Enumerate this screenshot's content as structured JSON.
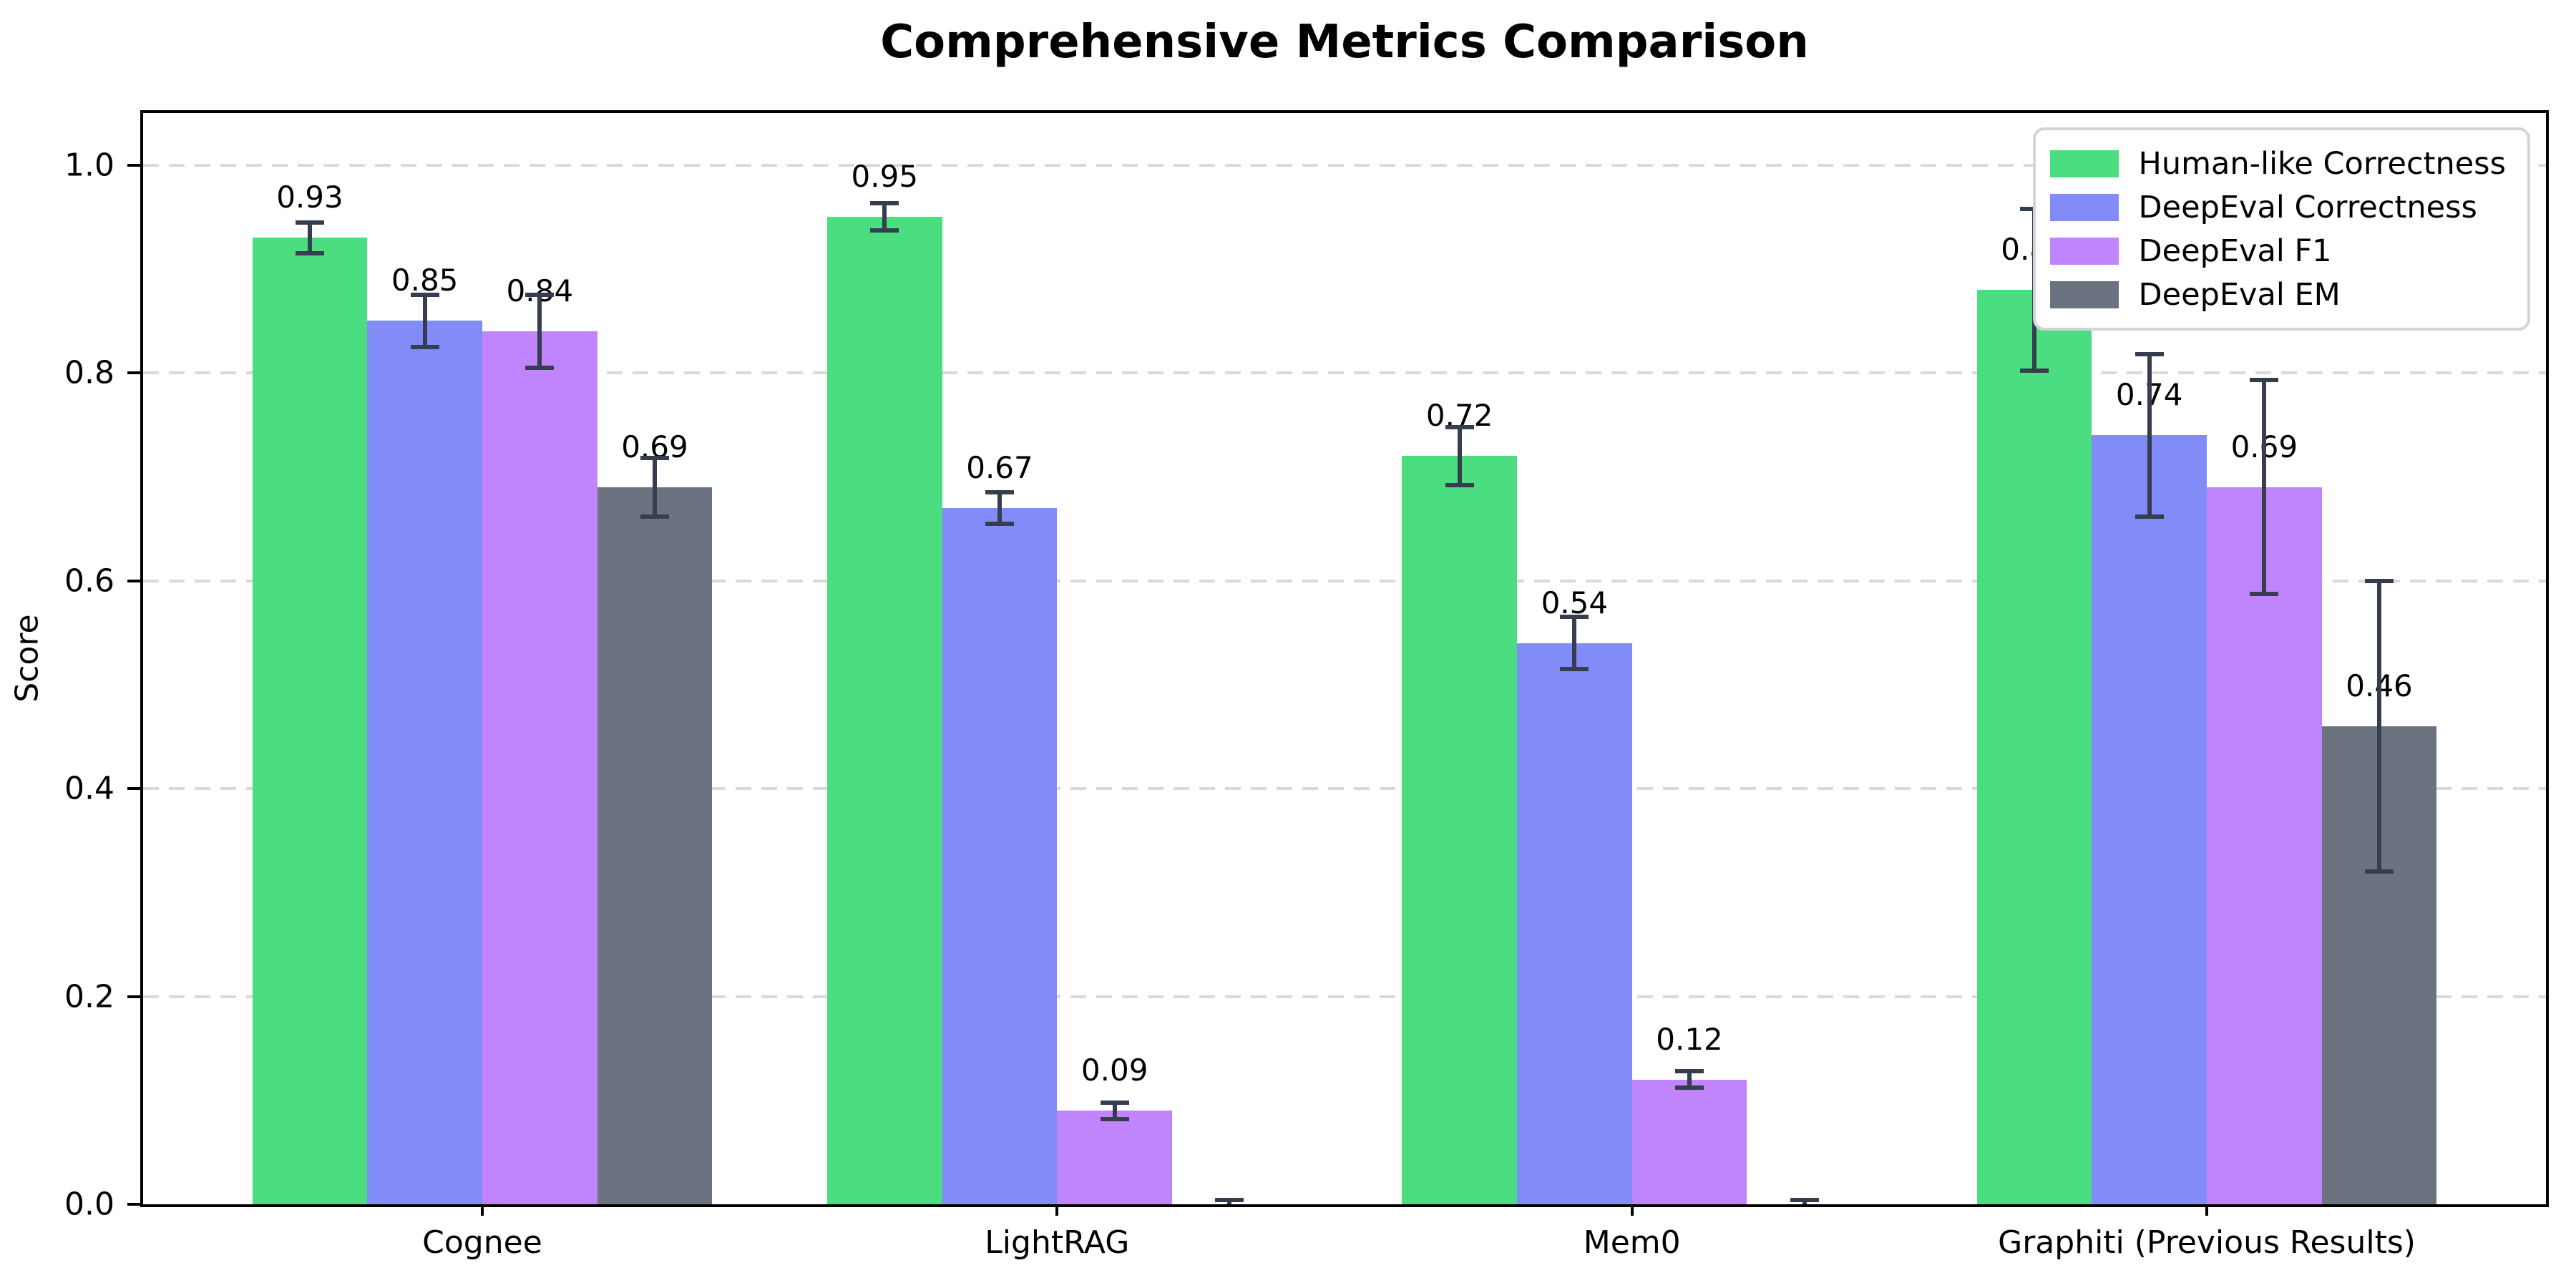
{
  "figure": {
    "background": "#ffffff"
  },
  "chart_data": {
    "type": "bar",
    "title": "Comprehensive Metrics Comparison",
    "ylabel": "Score",
    "xlabel": "",
    "categories": [
      "Cognee",
      "LightRAG",
      "Mem0",
      "Graphiti (Previous Results)"
    ],
    "series": [
      {
        "name": "Human-like Correctness",
        "color": "#4ade80",
        "values": [
          0.93,
          0.95,
          0.72,
          0.88
        ],
        "errors": [
          0.015,
          0.013,
          0.028,
          0.078
        ],
        "labels": [
          "0.93",
          "0.95",
          "0.72",
          "0.88"
        ]
      },
      {
        "name": "DeepEval Correctness",
        "color": "#818cf8",
        "values": [
          0.85,
          0.67,
          0.54,
          0.74
        ],
        "errors": [
          0.025,
          0.015,
          0.025,
          0.078
        ],
        "labels": [
          "0.85",
          "0.67",
          "0.54",
          "0.74"
        ]
      },
      {
        "name": "DeepEval F1",
        "color": "#c084fc",
        "values": [
          0.84,
          0.09,
          0.12,
          0.69
        ],
        "errors": [
          0.035,
          0.008,
          0.008,
          0.103
        ],
        "labels": [
          "0.84",
          "0.09",
          "0.12",
          "0.69"
        ]
      },
      {
        "name": "DeepEval EM",
        "color": "#6b7280",
        "values": [
          0.69,
          0.0,
          0.0,
          0.46
        ],
        "errors": [
          0.028,
          0.004,
          0.004,
          0.14
        ],
        "labels": [
          "0.69",
          "",
          "",
          "0.46"
        ]
      }
    ],
    "ylim": [
      0,
      1.05
    ],
    "yticks": [
      0.0,
      0.2,
      0.4,
      0.6,
      0.8,
      1.0
    ],
    "ytick_labels": [
      "0.0",
      "0.2",
      "0.4",
      "0.6",
      "0.8",
      "1.0"
    ],
    "grid": "horizontal-dashed",
    "legend_position": "upper right",
    "bar_width_units": 0.2,
    "xlim": [
      -0.59,
      3.59
    ],
    "error_color": "#353d4f",
    "grid_color": "#d9d9d9"
  }
}
